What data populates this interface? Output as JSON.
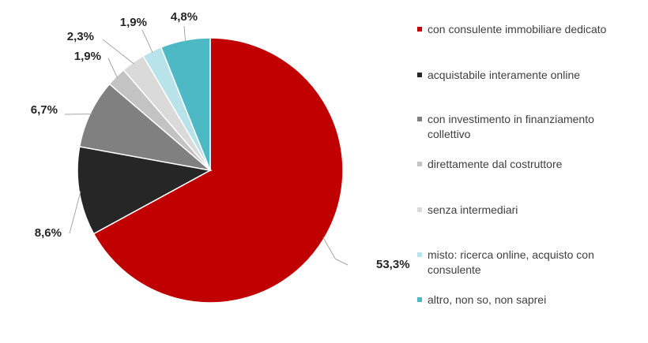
{
  "chart_data": {
    "type": "pie",
    "categories": [
      "con consulente immobiliare dedicato",
      "acquistabile interamente online",
      "con investimento in finanziamento collettivo",
      "direttamente dal costruttore",
      "senza intermediari",
      "misto: ricerca online, acquisto con consulente",
      "altro, non so, non saprei"
    ],
    "values": [
      53.3,
      8.6,
      6.7,
      1.9,
      2.3,
      1.9,
      4.8
    ],
    "value_labels": [
      "53,3%",
      "8,6%",
      "6,7%",
      "1,9%",
      "2,3%",
      "1,9%",
      "4,8%"
    ],
    "colors": [
      "#c00000",
      "#262626",
      "#808080",
      "#c3c3c3",
      "#dadada",
      "#b8e3ea",
      "#4cb9c5"
    ],
    "legend": "right"
  }
}
